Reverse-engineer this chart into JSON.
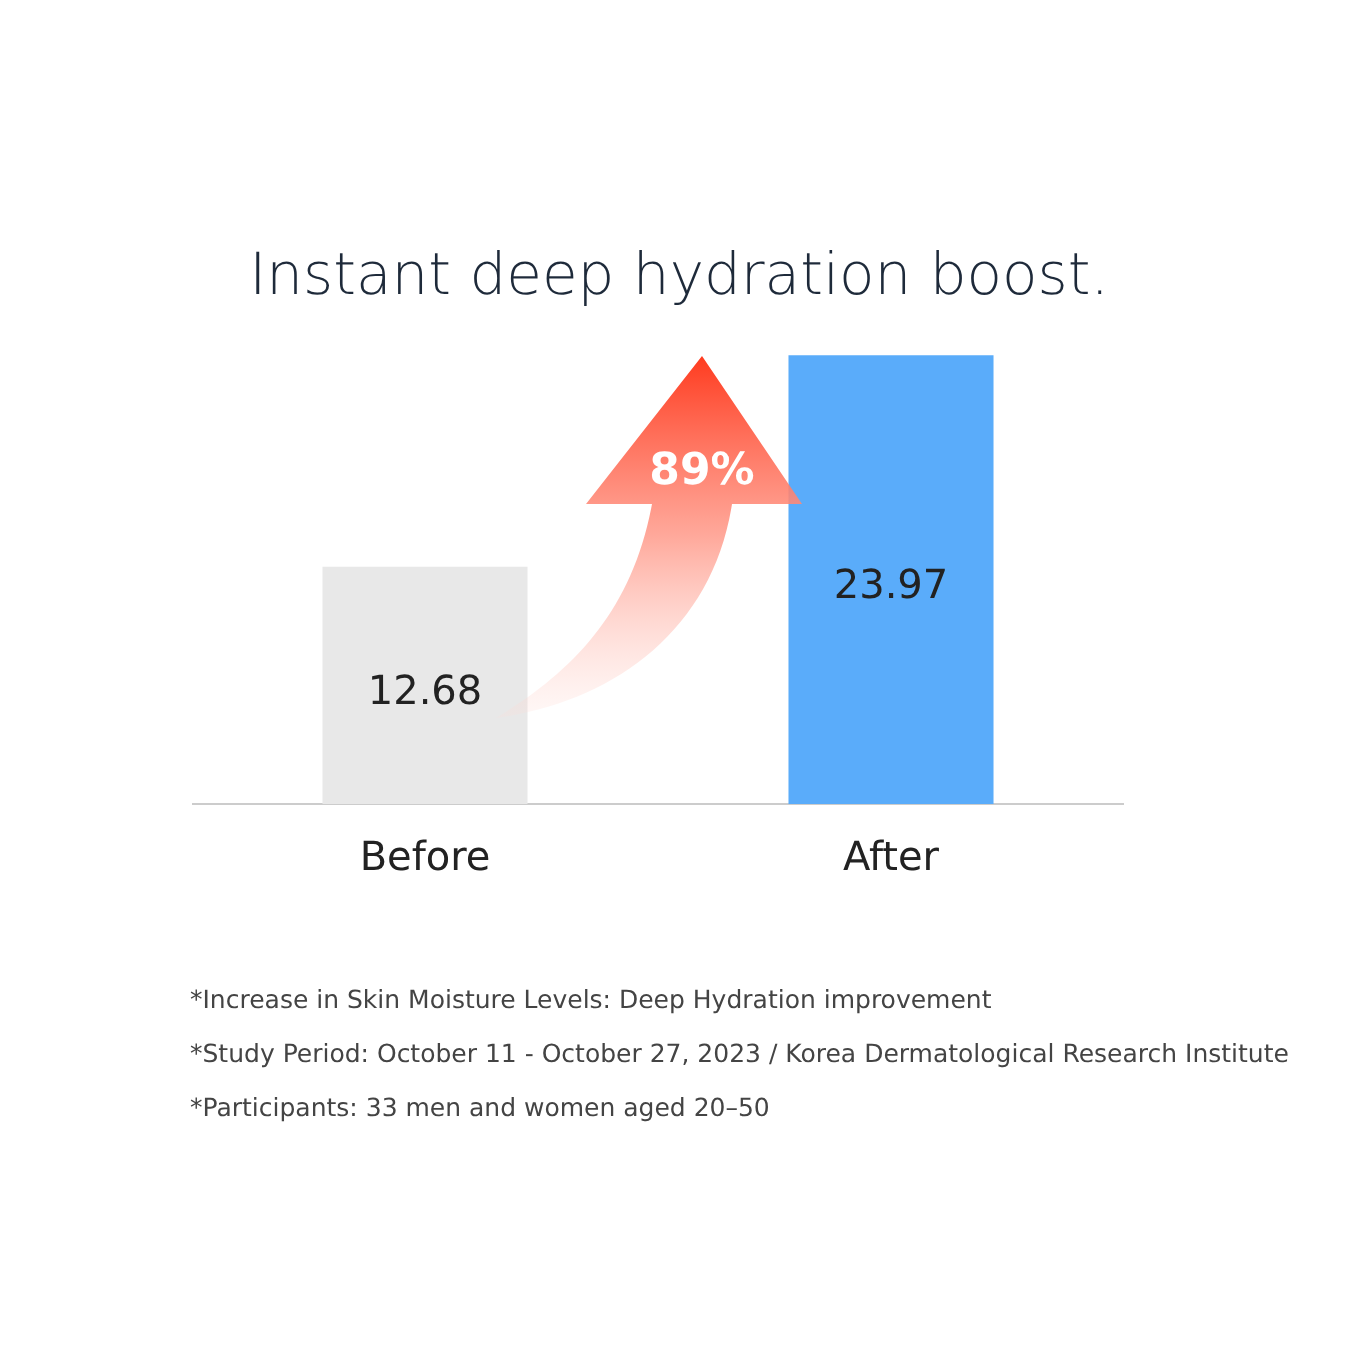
{
  "chart_data": {
    "type": "bar",
    "title": "Instant deep hydration boost.",
    "categories": [
      "Before",
      "After"
    ],
    "series": [
      {
        "values": [
          12.68,
          23.97
        ],
        "colors": [
          "#e8e8e8",
          "#5aacfa"
        ]
      }
    ],
    "data_labels": true,
    "grid": false,
    "legend": false,
    "tick_labels": "x",
    "annotations": [
      "89%",
      "*Increase in Skin Moisture Levels: Deep Hydration improvement",
      "*Study Period: October 11 - October 27, 2023 / Korea Dermatological Research Institute",
      "*Participants: 33 men and women aged 20–50"
    ]
  }
}
